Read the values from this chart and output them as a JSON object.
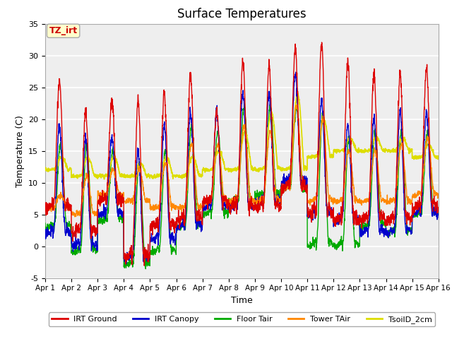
{
  "title": "Surface Temperatures",
  "xlabel": "Time",
  "ylabel": "Temperature (C)",
  "ylim": [
    -5,
    35
  ],
  "yticks": [
    -5,
    0,
    5,
    10,
    15,
    20,
    25,
    30,
    35
  ],
  "xtick_labels": [
    "Apr 1",
    "Apr 2",
    "Apr 3",
    "Apr 4",
    "Apr 5",
    "Apr 6",
    "Apr 7",
    "Apr 8",
    "Apr 9",
    "Apr 10",
    "Apr 11",
    "Apr 12",
    "Apr 13",
    "Apr 14",
    "Apr 15",
    "Apr 16"
  ],
  "series_colors": {
    "IRT Ground": "#dd0000",
    "IRT Canopy": "#0000cc",
    "Floor Tair": "#00aa00",
    "Tower TAir": "#ff8800",
    "TsoilD_2cm": "#dddd00"
  },
  "legend_labels": [
    "IRT Ground",
    "IRT Canopy",
    "Floor Tair",
    "Tower TAir",
    "TsoilD_2cm"
  ],
  "annotation_text": "TZ_irt",
  "annotation_color": "#cc0000",
  "annotation_bg": "#ffffcc",
  "plot_bg": "#eeeeee",
  "title_fontsize": 12,
  "axis_label_fontsize": 9,
  "tick_fontsize": 8,
  "ground_day_peaks": [
    26,
    21,
    23,
    23,
    24,
    27,
    21,
    29,
    28,
    31,
    32,
    29,
    27,
    27,
    28
  ],
  "ground_night_mins": [
    6,
    2,
    7,
    -2,
    3,
    4,
    7,
    6,
    6,
    9,
    5,
    4,
    4,
    4,
    6
  ],
  "canopy_day_peaks": [
    19,
    17,
    17,
    15,
    19,
    21,
    21,
    24,
    24,
    27,
    23,
    19,
    20,
    21,
    21
  ],
  "canopy_night_mins": [
    2,
    0,
    5,
    -2,
    1,
    3,
    6,
    6,
    7,
    10,
    5,
    4,
    2,
    2,
    5
  ],
  "floor_day_peaks": [
    16,
    16,
    15,
    13,
    15,
    19,
    18,
    22,
    22,
    22,
    21,
    17,
    18,
    18,
    18
  ],
  "floor_night_mins": [
    3,
    -1,
    4,
    -3,
    -1,
    3,
    5,
    7,
    8,
    9,
    0,
    0,
    3,
    2,
    5
  ],
  "tower_day_peaks": [
    8,
    11,
    12,
    12,
    13,
    16,
    16,
    19,
    18,
    22,
    20,
    15,
    15,
    16,
    17
  ],
  "tower_night_mins": [
    6,
    5,
    8,
    7,
    6,
    6,
    7,
    7,
    7,
    9,
    7,
    7,
    7,
    7,
    8
  ],
  "soil_day_peaks": [
    14,
    14,
    14,
    13,
    14,
    14,
    15,
    18,
    21,
    24,
    20,
    17,
    17,
    17,
    16
  ],
  "soil_night_mins": [
    12,
    11,
    11,
    11,
    11,
    11,
    12,
    12,
    12,
    12,
    14,
    15,
    15,
    15,
    14
  ]
}
